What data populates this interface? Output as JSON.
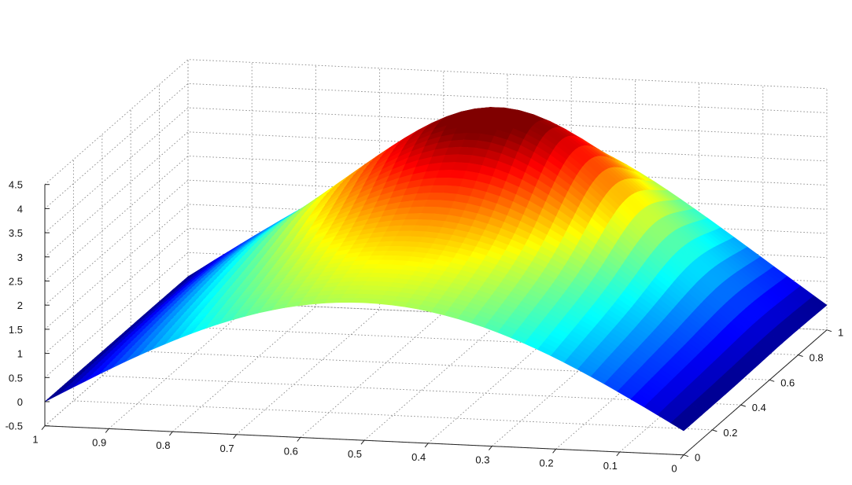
{
  "chart_data": {
    "type": "surface",
    "title": "",
    "xlabel": "",
    "ylabel": "",
    "zlabel": "",
    "grid": true,
    "colormap": "jet",
    "x_axis": {
      "range": [
        0,
        1
      ],
      "ticks": [
        1,
        0.9,
        0.8,
        0.7,
        0.6,
        0.5,
        0.4,
        0.3,
        0.2,
        0.1,
        0
      ],
      "labels": [
        "1",
        "0.9",
        "0.8",
        "0.7",
        "0.6",
        "0.5",
        "0.4",
        "0.3",
        "0.2",
        "0.1",
        "0"
      ]
    },
    "y_axis": {
      "range": [
        0,
        1
      ],
      "ticks": [
        0,
        0.2,
        0.4,
        0.6,
        0.8,
        1
      ],
      "labels": [
        "0",
        "0.2",
        "0.4",
        "0.6",
        "0.8",
        "1"
      ]
    },
    "z_axis": {
      "range": [
        -0.5,
        4.5
      ],
      "ticks": [
        -0.5,
        0,
        0.5,
        1,
        1.5,
        2,
        2.5,
        3,
        3.5,
        4,
        4.5
      ],
      "labels": [
        "-0.5",
        "0",
        "0.5",
        "1",
        "1.5",
        "2",
        "2.5",
        "3",
        "3.5",
        "4",
        "4.5"
      ]
    },
    "surface": {
      "description_points": [
        {
          "x": 1,
          "y": 0,
          "z": 0
        },
        {
          "x": 0,
          "y": 0,
          "z": 0
        },
        {
          "x": 1,
          "y": 1,
          "z": 0
        },
        {
          "x": 0,
          "y": 1,
          "z": 0
        },
        {
          "x": 0.5,
          "y": 0,
          "z": 2.4
        },
        {
          "x": 0.5,
          "y": 0.5,
          "z": 3.4
        },
        {
          "x": 0.45,
          "y": 0.7,
          "z": 4.3
        },
        {
          "x": 0.5,
          "y": 1,
          "z": 3.0
        }
      ]
    }
  }
}
